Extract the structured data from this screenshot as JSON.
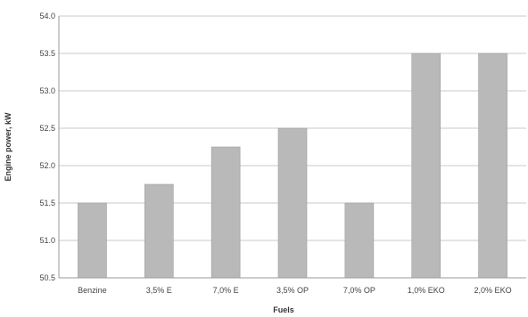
{
  "chart_data": {
    "type": "bar",
    "xlabel": "Fuels",
    "ylabel": "Engine power, kW",
    "ylim": [
      50.5,
      54.0
    ],
    "yticks": [
      "54.0",
      "53.5",
      "53.0",
      "52.5",
      "52.0",
      "51.5",
      "51.0",
      "50.5"
    ],
    "categories": [
      "Benzine",
      "3,5% E",
      "7,0% E",
      "3,5% OP",
      "7,0% OP",
      "1,0% EKO",
      "2,0% EKO"
    ],
    "values": [
      51.5,
      51.75,
      52.25,
      52.5,
      51.5,
      53.5,
      53.5
    ],
    "grid": true,
    "legend": "none",
    "bar_color": "#b9b9b9",
    "bar_edge_color": "#9e9e9e"
  }
}
